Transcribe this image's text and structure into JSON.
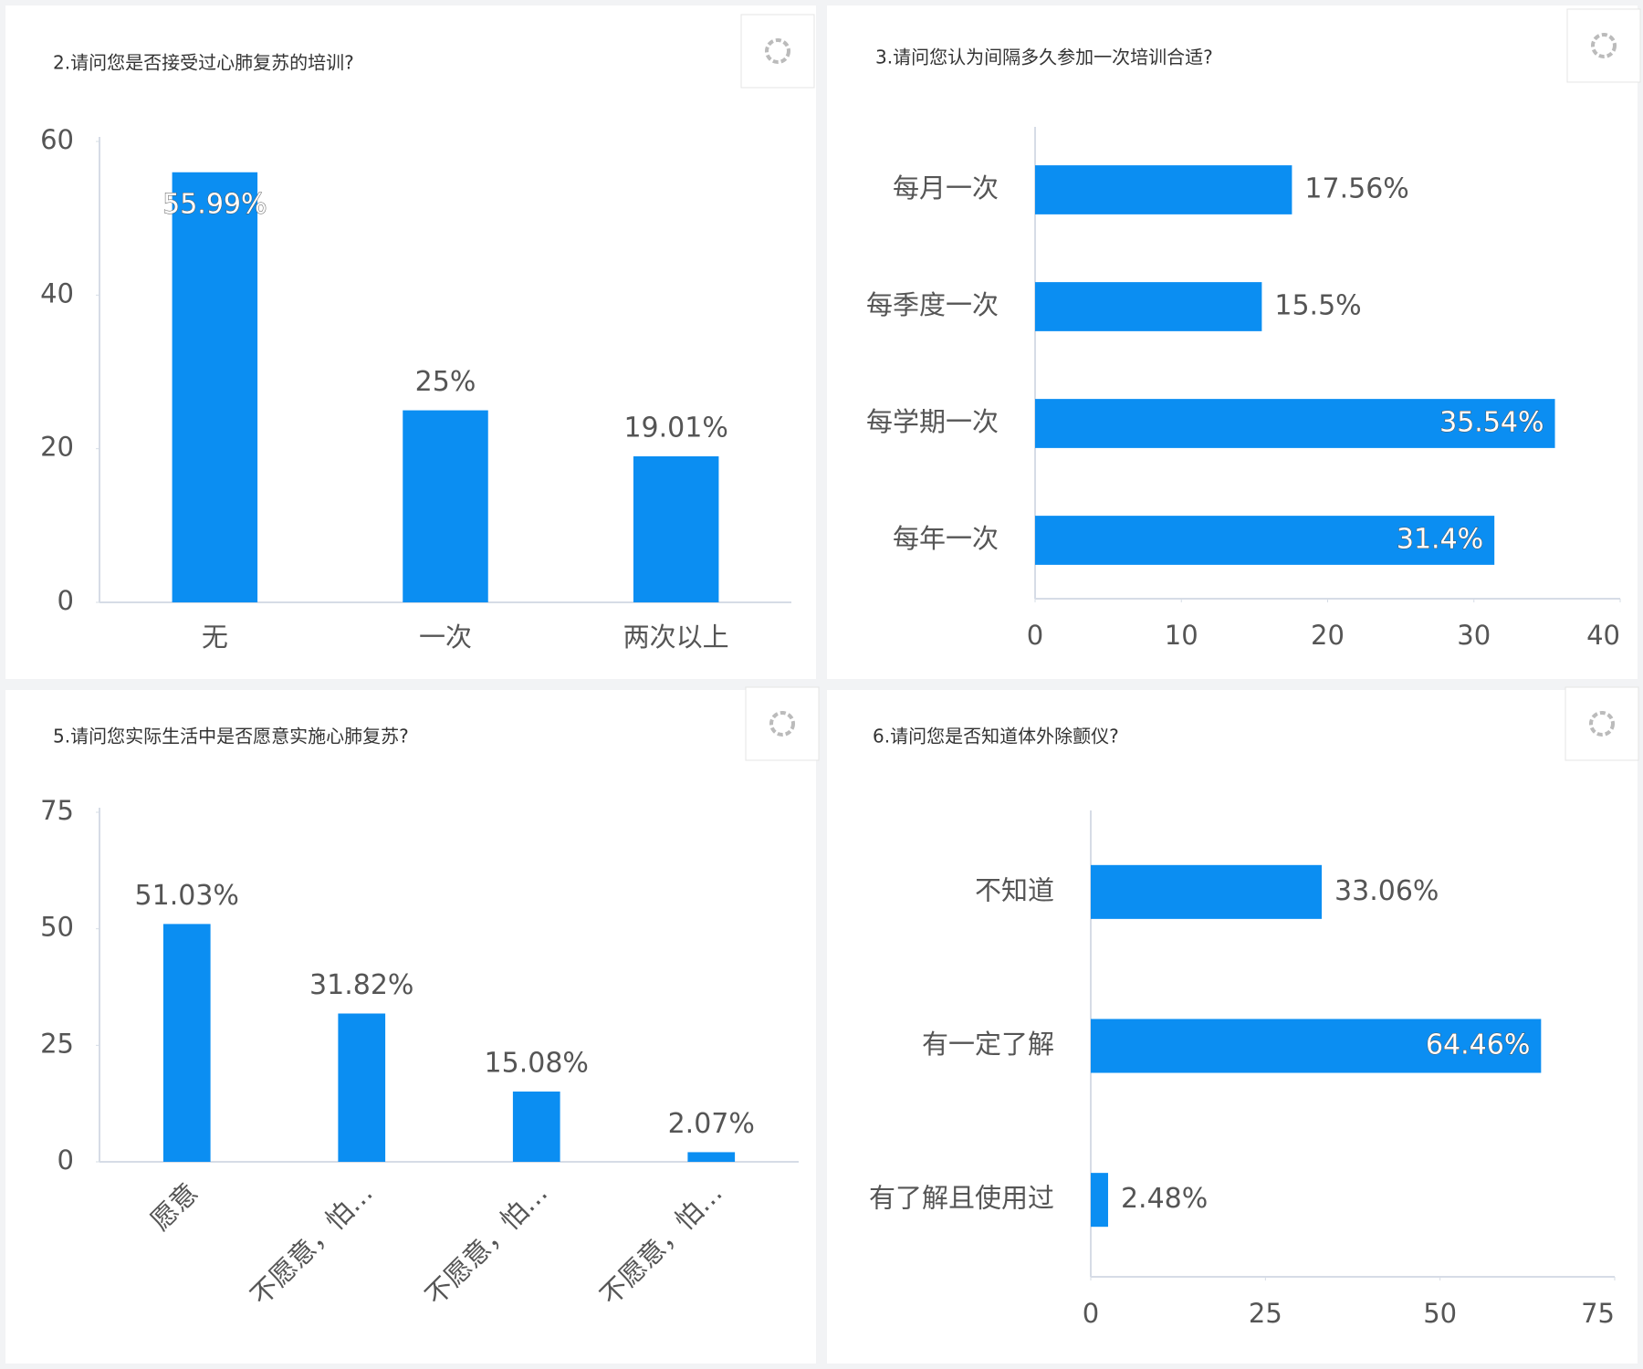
{
  "chart_data": [
    {
      "type": "bar",
      "orientation": "vertical",
      "title": "2.请问您是否接受过心肺复苏的培训?",
      "categories": [
        "无",
        "一次",
        "两次以上"
      ],
      "values": [
        55.99,
        25,
        19.01
      ],
      "value_labels": [
        "55.99%",
        "25%",
        "19.01%"
      ],
      "color": "#0b8ef2",
      "ylim": [
        0,
        60
      ],
      "yticks": [
        0,
        20,
        40,
        60
      ]
    },
    {
      "type": "bar",
      "orientation": "horizontal",
      "title": "3.请问您认为间隔多久参加一次培训合适?",
      "categories": [
        "每月一次",
        "每季度一次",
        "每学期一次",
        "每年一次"
      ],
      "values": [
        17.56,
        15.5,
        35.54,
        31.4
      ],
      "value_labels": [
        "17.56%",
        "15.5%",
        "35.54%",
        "31.4%"
      ],
      "color": "#0b8ef2",
      "xlim": [
        0,
        40
      ],
      "xticks": [
        0,
        10,
        20,
        30,
        40
      ]
    },
    {
      "type": "bar",
      "orientation": "vertical",
      "title": "5.请问您实际生活中是否愿意实施心肺复苏?",
      "categories": [
        "愿意",
        "不愿意，怕…",
        "不愿意，怕…",
        "不愿意，怕…"
      ],
      "values": [
        51.03,
        31.82,
        15.08,
        2.07
      ],
      "value_labels": [
        "51.03%",
        "31.82%",
        "15.08%",
        "2.07%"
      ],
      "color": "#0b8ef2",
      "ylim": [
        0,
        75
      ],
      "yticks": [
        0,
        25,
        50,
        75
      ],
      "rotate_labels": true
    },
    {
      "type": "bar",
      "orientation": "horizontal",
      "title": "6.请问您是否知道体外除颤仪?",
      "categories": [
        "不知道",
        "有一定了解",
        "有了解且使用过"
      ],
      "values": [
        33.06,
        64.46,
        2.48
      ],
      "value_labels": [
        "33.06%",
        "64.46%",
        "2.48%"
      ],
      "color": "#0b8ef2",
      "xlim": [
        0,
        75
      ],
      "xticks": [
        0,
        25,
        50,
        75
      ]
    }
  ]
}
